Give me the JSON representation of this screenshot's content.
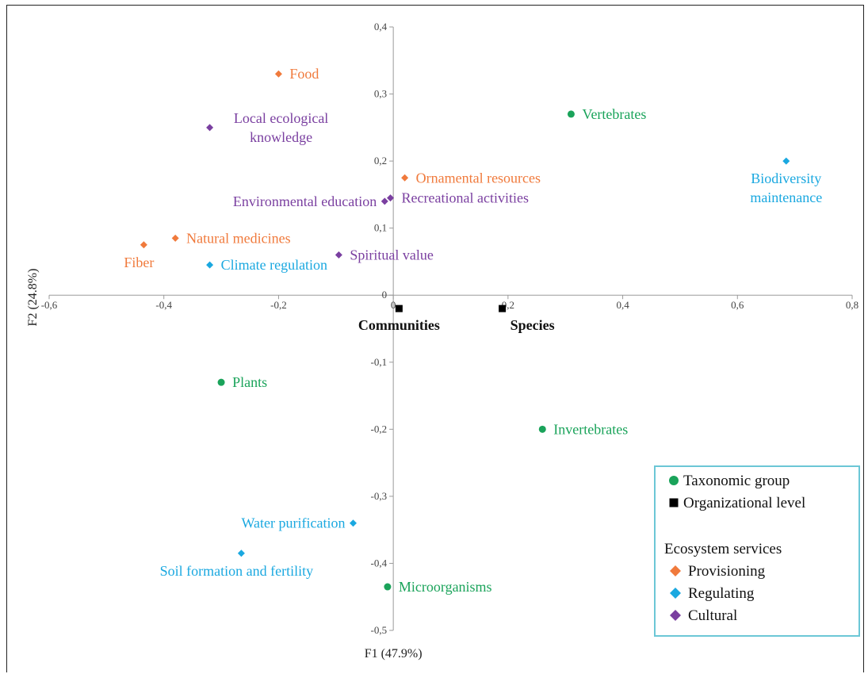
{
  "chart_data": {
    "type": "scatter",
    "xlabel": "F1 (47.9%)",
    "ylabel": "F2 (24.8%)",
    "xlim": [
      -0.6,
      0.8
    ],
    "ylim": [
      -0.5,
      0.4
    ],
    "x_ticks": [
      {
        "value": -0.6,
        "label": "-0,6"
      },
      {
        "value": -0.4,
        "label": "-0,4"
      },
      {
        "value": -0.2,
        "label": "-0,2"
      },
      {
        "value": 0,
        "label": "0"
      },
      {
        "value": 0.2,
        "label": "0,2"
      },
      {
        "value": 0.4,
        "label": "0,4"
      },
      {
        "value": 0.6,
        "label": "0,6"
      },
      {
        "value": 0.8,
        "label": "0,8"
      }
    ],
    "y_ticks": [
      {
        "value": 0.4,
        "label": "0,4"
      },
      {
        "value": 0.3,
        "label": "0,3"
      },
      {
        "value": 0.2,
        "label": "0,2"
      },
      {
        "value": 0.1,
        "label": "0,1"
      },
      {
        "value": 0,
        "label": "0"
      },
      {
        "value": -0.1,
        "label": "-0,1"
      },
      {
        "value": -0.2,
        "label": "-0,2"
      },
      {
        "value": -0.3,
        "label": "-0,3"
      },
      {
        "value": -0.4,
        "label": "-0,4"
      },
      {
        "value": -0.5,
        "label": "-0,5"
      }
    ],
    "legend_position": "bottom-right",
    "colors": {
      "taxonomic": "#1aa35a",
      "organizational": "#000000",
      "provisioning": "#f07a3c",
      "regulating": "#1aa8e0",
      "cultural": "#7a3fa0"
    },
    "series": [
      {
        "name": "Taxonomic group",
        "category": "taxonomic",
        "marker": "circle",
        "points": [
          {
            "label": "Vertebrates",
            "x": 0.31,
            "y": 0.27,
            "anchor": "right"
          },
          {
            "label": "Plants",
            "x": -0.3,
            "y": -0.13,
            "anchor": "right"
          },
          {
            "label": "Invertebrates",
            "x": 0.26,
            "y": -0.2,
            "anchor": "right"
          },
          {
            "label": "Microorganisms",
            "x": -0.01,
            "y": -0.435,
            "anchor": "right"
          }
        ]
      },
      {
        "name": "Organizational level",
        "category": "organizational",
        "marker": "square",
        "points": [
          {
            "label": "Communities",
            "x": 0.01,
            "y": -0.02,
            "anchor": "below"
          },
          {
            "label": "Species",
            "x": 0.19,
            "y": -0.02,
            "anchor": "below-right"
          }
        ]
      },
      {
        "name": "Provisioning",
        "category": "provisioning",
        "marker": "diamond",
        "points": [
          {
            "label": "Food",
            "x": -0.2,
            "y": 0.33,
            "anchor": "right"
          },
          {
            "label": "Ornamental resources",
            "x": 0.02,
            "y": 0.175,
            "anchor": "right"
          },
          {
            "label": "Natural medicines",
            "x": -0.38,
            "y": 0.085,
            "anchor": "right"
          },
          {
            "label": "Fiber",
            "x": -0.435,
            "y": 0.075,
            "anchor": "below-left"
          }
        ]
      },
      {
        "name": "Regulating",
        "category": "regulating",
        "marker": "diamond",
        "points": [
          {
            "label": "Biodiversity maintenance",
            "x": 0.685,
            "y": 0.2,
            "anchor": "below"
          },
          {
            "label": "Climate regulation",
            "x": -0.32,
            "y": 0.045,
            "anchor": "right"
          },
          {
            "label": "Water purification",
            "x": -0.07,
            "y": -0.34,
            "anchor": "left"
          },
          {
            "label": "Soil formation and fertility",
            "x": -0.265,
            "y": -0.385,
            "anchor": "below-left"
          }
        ]
      },
      {
        "name": "Cultural",
        "category": "cultural",
        "marker": "diamond",
        "points": [
          {
            "label": "Local ecological knowledge",
            "x": -0.32,
            "y": 0.25,
            "anchor": "above-right"
          },
          {
            "label": "Environmental education",
            "x": -0.015,
            "y": 0.14,
            "anchor": "left"
          },
          {
            "label": "Recreational activities",
            "x": -0.005,
            "y": 0.145,
            "anchor": "right"
          },
          {
            "label": "Spiritual value",
            "x": -0.095,
            "y": 0.06,
            "anchor": "right"
          }
        ]
      }
    ],
    "legend": {
      "entries": [
        {
          "label": "Taxonomic group",
          "category": "taxonomic",
          "marker": "circle"
        },
        {
          "label": "Organizational level",
          "category": "organizational",
          "marker": "square"
        }
      ],
      "subtitle": "Ecosystem services",
      "sub_entries": [
        {
          "label": "Provisioning",
          "category": "provisioning",
          "marker": "diamond"
        },
        {
          "label": "Regulating",
          "category": "regulating",
          "marker": "diamond"
        },
        {
          "label": "Cultural",
          "category": "cultural",
          "marker": "diamond"
        }
      ]
    }
  }
}
